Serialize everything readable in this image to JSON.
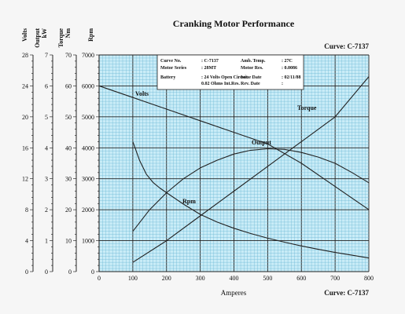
{
  "chart_data": {
    "type": "line",
    "title": "Cranking Motor Performance",
    "curve_top": "Curve: C-7137",
    "curve_bottom": "Curve: C-7137",
    "xlabel": "Amperes",
    "xlim": [
      0,
      800
    ],
    "xticks": [
      "0",
      "100",
      "200",
      "300",
      "400",
      "500",
      "600",
      "700",
      "800"
    ],
    "grid": true,
    "axes": [
      {
        "id": "volts",
        "header": [
          "Volts"
        ],
        "ylim": [
          0,
          28
        ],
        "ticks": [
          "0",
          "4",
          "8",
          "12",
          "16",
          "20",
          "24",
          "28"
        ]
      },
      {
        "id": "output",
        "header": [
          "Output",
          "kW"
        ],
        "ylim": [
          0,
          7
        ],
        "ticks": [
          "0",
          "1",
          "2",
          "3",
          "4",
          "5",
          "6",
          "7"
        ]
      },
      {
        "id": "torque",
        "header": [
          "Torque",
          "Nm"
        ],
        "ylim": [
          0,
          70
        ],
        "ticks": [
          "0",
          "10",
          "20",
          "30",
          "40",
          "50",
          "60",
          "70"
        ]
      },
      {
        "id": "rpm",
        "header": [
          "Rpm"
        ],
        "ylim": [
          0,
          7000
        ],
        "ticks": [
          "0",
          "1000",
          "2000",
          "3000",
          "4000",
          "5000",
          "6000",
          "7000"
        ]
      }
    ],
    "info_box": {
      "rows": [
        [
          "Curve No.",
          ": C-7137",
          "Amb. Temp.",
          ": 27C"
        ],
        [
          "Motor Series",
          ": 28MT",
          "Motor Res.",
          ": 0.0086"
        ],
        [
          "Battery",
          ": 24 Volts Open Circuit",
          "Issue Date",
          ": 02/11/88"
        ],
        [
          "",
          "0.02 Ohms Int.Res.",
          "Rev. Date",
          ":"
        ]
      ]
    },
    "series": [
      {
        "name": "Volts",
        "axis": "volts",
        "x": [
          0,
          100,
          200,
          300,
          400,
          500,
          600,
          700,
          800
        ],
        "y": [
          24,
          22.5,
          21,
          19.5,
          18,
          16.5,
          14,
          11,
          8
        ]
      },
      {
        "name": "Torque",
        "axis": "torque",
        "x": [
          100,
          200,
          300,
          400,
          500,
          600,
          700,
          800
        ],
        "y": [
          3,
          10,
          18,
          26,
          34,
          42,
          50,
          63
        ]
      },
      {
        "name": "Output",
        "axis": "output",
        "x": [
          100,
          150,
          200,
          250,
          300,
          350,
          400,
          450,
          500,
          550,
          600,
          650,
          700,
          750,
          800
        ],
        "y": [
          1.3,
          2.0,
          2.55,
          3.0,
          3.35,
          3.6,
          3.8,
          3.92,
          3.97,
          3.95,
          3.85,
          3.7,
          3.5,
          3.2,
          2.87
        ]
      },
      {
        "name": "Rpm",
        "axis": "rpm",
        "x": [
          100,
          120,
          140,
          160,
          180,
          200,
          250,
          300,
          350,
          400,
          450,
          500,
          550,
          600,
          650,
          700,
          750,
          800
        ],
        "y": [
          4200,
          3600,
          3150,
          2880,
          2700,
          2550,
          2180,
          1850,
          1600,
          1400,
          1230,
          1080,
          950,
          830,
          720,
          620,
          530,
          440
        ]
      }
    ]
  }
}
